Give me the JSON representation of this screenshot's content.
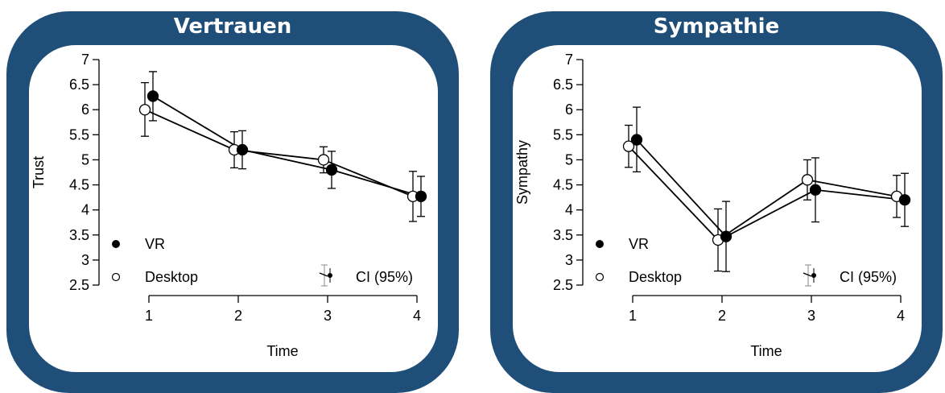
{
  "chart_data": [
    {
      "type": "line",
      "title": "Vertrauen",
      "xlabel": "Time",
      "ylabel": "Trust",
      "x": [
        1,
        2,
        3,
        4
      ],
      "xticks": [
        "1",
        "2",
        "3",
        "4"
      ],
      "ylim": [
        2.5,
        7
      ],
      "yticks": [
        "2.5",
        "3",
        "3.5",
        "4",
        "4.5",
        "5",
        "5.5",
        "6",
        "6.5",
        "7"
      ],
      "grid": false,
      "legend_position": "bottom",
      "series": [
        {
          "name": "VR",
          "values": [
            6.27,
            5.2,
            4.8,
            4.27
          ],
          "ci_low": [
            5.78,
            4.82,
            4.43,
            3.87
          ],
          "ci_high": [
            6.76,
            5.58,
            5.17,
            4.67
          ],
          "marker": "filled",
          "color": "#000000"
        },
        {
          "name": "Desktop",
          "values": [
            6.0,
            5.2,
            5.0,
            4.27
          ],
          "ci_low": [
            5.47,
            4.84,
            4.74,
            3.77
          ],
          "ci_high": [
            6.54,
            5.56,
            5.26,
            4.77
          ],
          "marker": "open",
          "color": "#000000"
        }
      ],
      "ci_label": "CI (95%)"
    },
    {
      "type": "line",
      "title": "Sympathie",
      "xlabel": "Time",
      "ylabel": "Sympathy",
      "x": [
        1,
        2,
        3,
        4
      ],
      "xticks": [
        "1",
        "2",
        "3",
        "4"
      ],
      "ylim": [
        2.5,
        7
      ],
      "yticks": [
        "2.5",
        "3",
        "3.5",
        "4",
        "4.5",
        "5",
        "5.5",
        "6",
        "6.5",
        "7"
      ],
      "grid": false,
      "legend_position": "bottom",
      "series": [
        {
          "name": "VR",
          "values": [
            5.4,
            3.47,
            4.4,
            4.2
          ],
          "ci_low": [
            4.76,
            2.77,
            3.76,
            3.67
          ],
          "ci_high": [
            6.05,
            4.17,
            5.04,
            4.73
          ],
          "marker": "filled",
          "color": "#000000"
        },
        {
          "name": "Desktop",
          "values": [
            5.27,
            3.4,
            4.6,
            4.27
          ],
          "ci_low": [
            4.85,
            2.78,
            4.2,
            3.85
          ],
          "ci_high": [
            5.69,
            4.02,
            5.0,
            4.69
          ],
          "marker": "open",
          "color": "#000000"
        }
      ],
      "ci_label": "CI (95%)"
    }
  ],
  "colors": {
    "frame": "#1f4e79",
    "inner": "#ffffff",
    "title_text": "#ffffff"
  }
}
